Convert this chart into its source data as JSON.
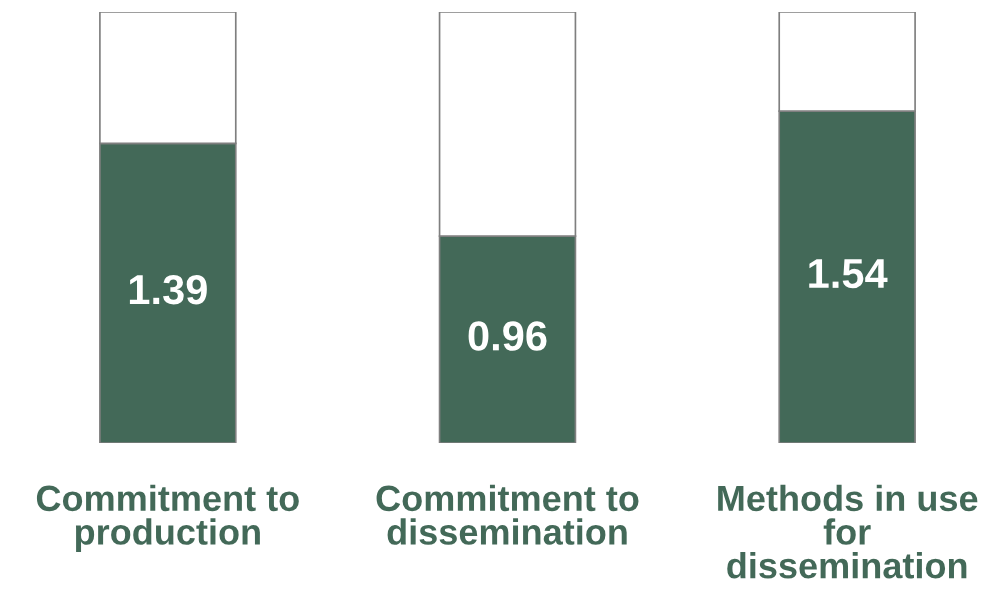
{
  "chart_data": {
    "type": "bar",
    "stacked": true,
    "categories": [
      "Commitment to\nproduction",
      "Commitment to\ndissemination",
      "Methods in use\nfor\ndissemination"
    ],
    "series": [
      {
        "color": "#436958",
        "values": [
          1.39,
          0.96,
          1.54
        ],
        "value_labels": [
          "1.39",
          "0.96",
          "1.54"
        ]
      },
      {
        "color": "#ffffff",
        "values": [
          0.61,
          1.04,
          0.46
        ],
        "value_labels": [
          null,
          null,
          null
        ]
      }
    ],
    "ylim": [
      0,
      2
    ],
    "tick_labels": "x"
  }
}
